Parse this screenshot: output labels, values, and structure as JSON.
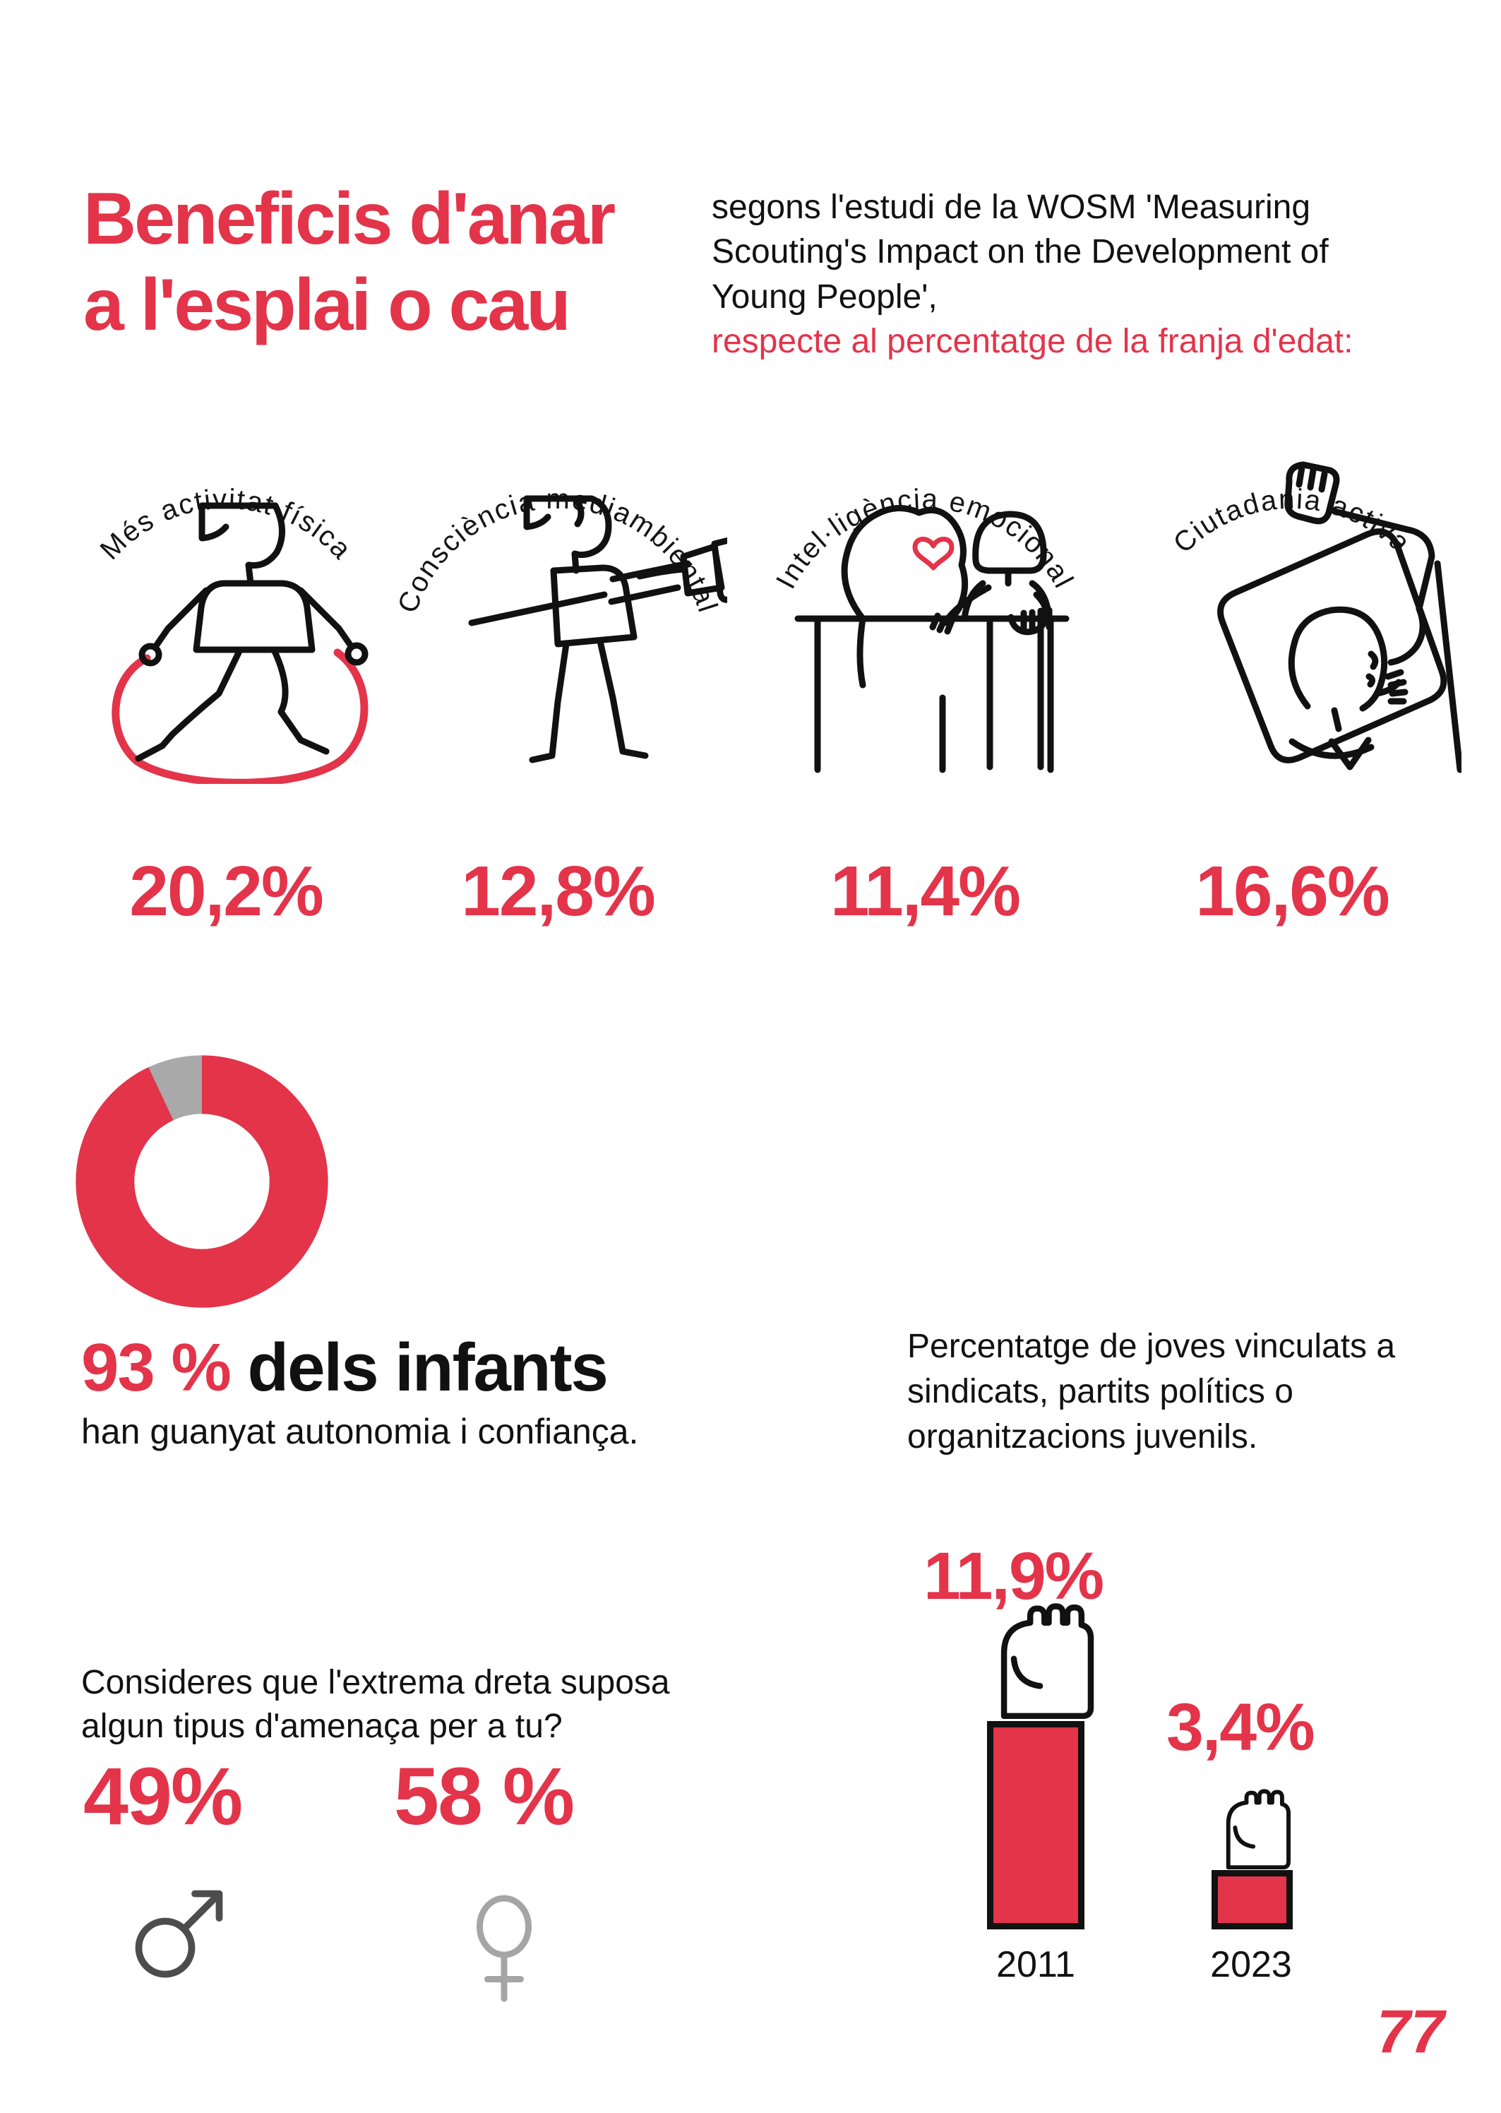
{
  "page": {
    "number": "77"
  },
  "colors": {
    "red": "#e3344a",
    "black": "#111111",
    "gray_slice": "#a9a9a9",
    "male_gray": "#4d4d4d",
    "female_gray": "#a5a5a5"
  },
  "header": {
    "title_line1": "Beneficis d'anar",
    "title_line2": "a l'esplai o cau",
    "subtitle_black": "segons l'estudi de la WOSM 'Measuring Scouting's Impact on the Development of Young People',",
    "subtitle_red": "respecte al percentatge de la franja d'edat:"
  },
  "benefits": {
    "items": [
      {
        "label": "Més activitat física",
        "value": "20,2%",
        "icon": "jump-rope-person-icon"
      },
      {
        "label": "Consciència mediambiental",
        "value": "12,8%",
        "icon": "person-unplugging-icon"
      },
      {
        "label": "Intel·ligència emocional",
        "value": "11,4%",
        "icon": "friends-hug-heart-icon"
      },
      {
        "label": "Ciutadania activa",
        "value": "16,6%",
        "icon": "person-raised-fist-icon"
      }
    ]
  },
  "donut_stat": {
    "value_pct": 93,
    "value_label": "93 %",
    "headline_rest": "dels infants",
    "subline": "han guanyat autonomia i confiança."
  },
  "membership": {
    "description": "Percentatge de joves vinculats a sindicats, partits polítics o organitzacions juvenils.",
    "bars": [
      {
        "year": "2011",
        "label": "11,9%",
        "value": 11.9
      },
      {
        "year": "2023",
        "label": "3,4%",
        "value": 3.4
      }
    ]
  },
  "threat_question": {
    "question": "Consideres que l'extrema dreta suposa algun tipus d'amenaça per a tu?",
    "answers": [
      {
        "group": "male-symbol",
        "label": "49%",
        "value": 49
      },
      {
        "group": "female-symbol",
        "label": "58 %",
        "value": 58
      }
    ]
  },
  "chart_data": [
    {
      "type": "bar",
      "title": "Beneficis d'anar a l'esplai o cau (WOSM, respecte al percentatge de la franja d'edat)",
      "categories": [
        "Més activitat física",
        "Consciència mediambiental",
        "Intel·ligència emocional",
        "Ciutadania activa"
      ],
      "values": [
        20.2,
        12.8,
        11.4,
        16.6
      ],
      "unit": "%",
      "style": "pictogram with arched labels, red value labels"
    },
    {
      "type": "pie",
      "title": "93 % dels infants han guanyat autonomia i confiança.",
      "labels": [
        "han guanyat autonomia i confiança",
        "resta"
      ],
      "values": [
        93,
        7
      ],
      "colors": [
        "#e3344a",
        "#a9a9a9"
      ],
      "style": "donut, gray slice just left of 12 o'clock"
    },
    {
      "type": "bar",
      "title": "Percentatge de joves vinculats a sindicats, partits polítics o organitzacions juvenils.",
      "categories": [
        "2011",
        "2023"
      ],
      "values": [
        11.9,
        3.4
      ],
      "unit": "%",
      "style": "red bars topped with raised-fist icons"
    },
    {
      "type": "bar",
      "title": "Consideres que l'extrema dreta suposa algun tipus d'amenaça per a tu?",
      "categories": [
        "male-symbol",
        "female-symbol"
      ],
      "values": [
        49,
        58
      ],
      "unit": "%"
    }
  ]
}
